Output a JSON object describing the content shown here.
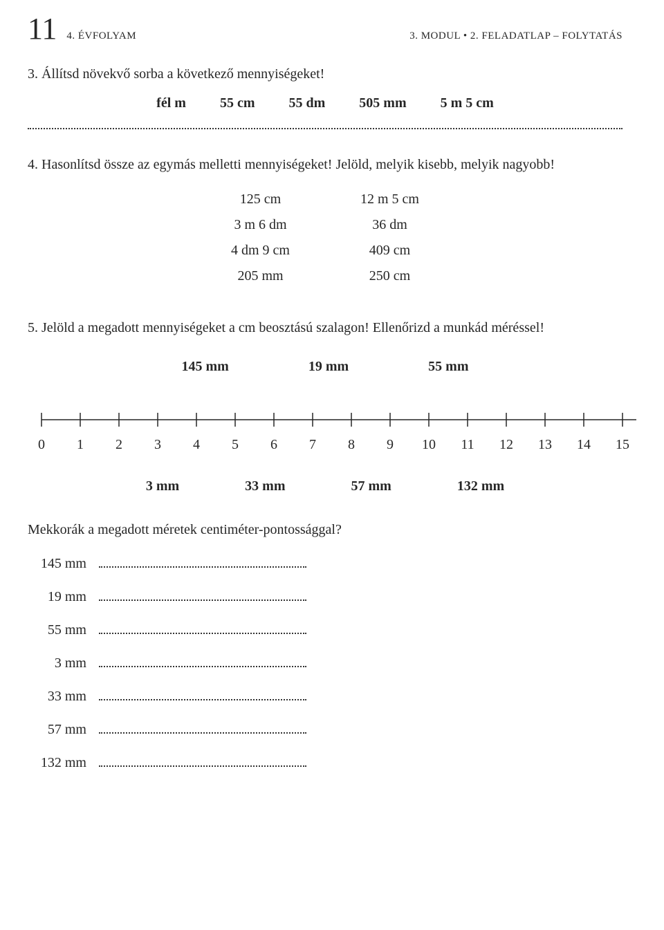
{
  "header": {
    "page_number": "11",
    "left": "4. ÉVFOLYAM",
    "right": "3. MODUL • 2. FELADATLAP – FOLYTATÁS"
  },
  "q3": {
    "text": "3. Állítsd növekvő sorba a következő mennyiségeket!",
    "items": [
      "fél m",
      "55 cm",
      "55 dm",
      "505 mm",
      "5 m 5 cm"
    ]
  },
  "q4": {
    "text": "4. Hasonlítsd össze az egymás melletti mennyiségeket! Jelöld, melyik kisebb, melyik nagyobb!",
    "pairs": [
      [
        "125 cm",
        "12 m 5 cm"
      ],
      [
        "3 m 6 dm",
        "36 dm"
      ],
      [
        "4 dm 9 cm",
        "409 cm"
      ],
      [
        "205 mm",
        "250 cm"
      ]
    ]
  },
  "q5": {
    "text": "5. Jelöld a megadott mennyiségeket a cm beosztású szalagon! Ellenőrizd a munkád méréssel!",
    "top_values": [
      "145 mm",
      "19 mm",
      "55 mm"
    ],
    "bottom_values": [
      "3 mm",
      "33 mm",
      "57 mm",
      "132 mm"
    ],
    "ruler": {
      "min": 0,
      "max": 15,
      "ticks": [
        "0",
        "1",
        "2",
        "3",
        "4",
        "5",
        "6",
        "7",
        "8",
        "9",
        "10",
        "11",
        "12",
        "13",
        "14",
        "15"
      ],
      "stroke": "#262626",
      "stroke_width": 1.5
    },
    "followup": "Mekkorák a megadott méretek centiméter-pontossággal?",
    "answer_labels": [
      "145 mm",
      "19 mm",
      "55 mm",
      "3 mm",
      "33 mm",
      "57 mm",
      "132 mm"
    ]
  }
}
